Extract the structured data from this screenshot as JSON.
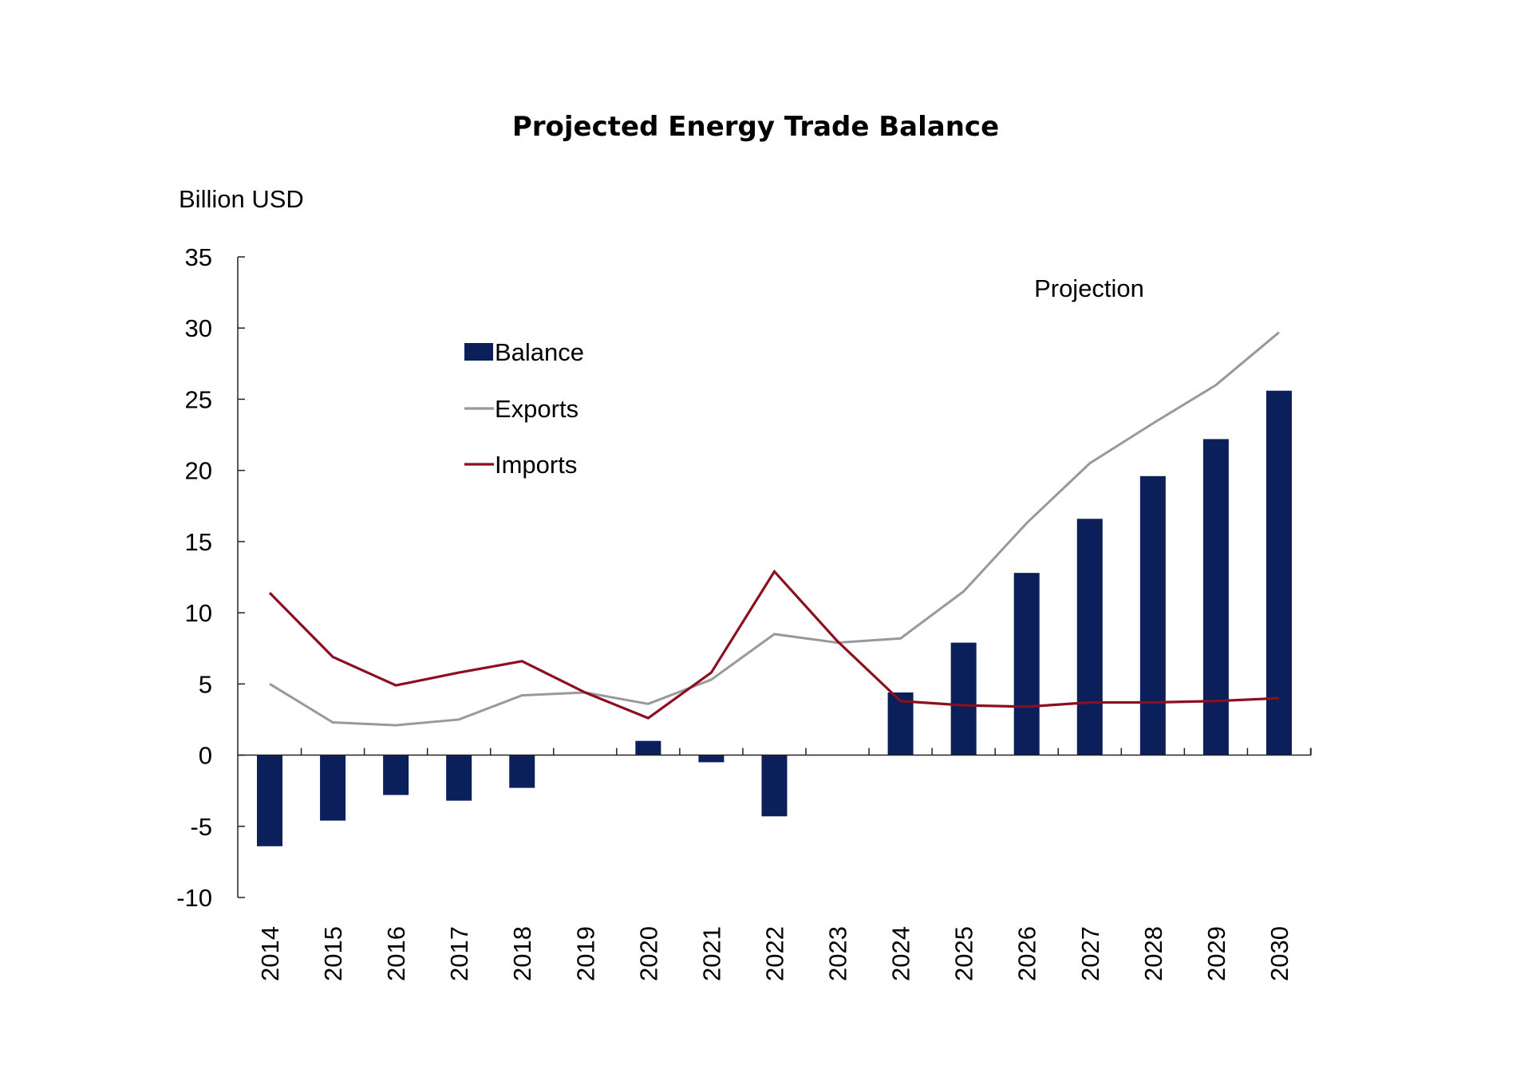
{
  "chart_data": {
    "type": "bar",
    "title": "Projected Energy Trade Balance",
    "ylabel": "Billion USD",
    "xlabel": "",
    "ylim": [
      -10,
      35
    ],
    "yticks": [
      35,
      30,
      25,
      20,
      15,
      10,
      5,
      0,
      -5,
      -10
    ],
    "grid": false,
    "legend_position": "upper-left",
    "annotation": "Projection",
    "categories": [
      "2014",
      "2015",
      "2016",
      "2017",
      "2018",
      "2019",
      "2020",
      "2021",
      "2022",
      "2023",
      "2024",
      "2025",
      "2026",
      "2027",
      "2028",
      "2029",
      "2030"
    ],
    "series": [
      {
        "name": "Balance",
        "type": "bar",
        "color": "#0b1f5a",
        "values": [
          -6.4,
          -4.6,
          -2.8,
          -3.2,
          -2.3,
          0.0,
          1.0,
          -0.5,
          -4.3,
          0.0,
          4.4,
          7.9,
          12.8,
          16.6,
          19.6,
          22.2,
          25.6
        ]
      },
      {
        "name": "Exports",
        "type": "line",
        "color": "#999999",
        "values": [
          5.0,
          2.3,
          2.1,
          2.5,
          4.2,
          4.4,
          3.6,
          5.3,
          8.5,
          7.9,
          8.2,
          11.5,
          16.3,
          20.5,
          23.3,
          26.0,
          29.7
        ]
      },
      {
        "name": "Imports",
        "type": "line",
        "color": "#8b0f1e",
        "values": [
          11.4,
          6.9,
          4.9,
          5.8,
          6.6,
          4.4,
          2.6,
          5.8,
          12.9,
          8.0,
          3.8,
          3.5,
          3.4,
          3.7,
          3.7,
          3.8,
          4.0
        ]
      }
    ]
  }
}
